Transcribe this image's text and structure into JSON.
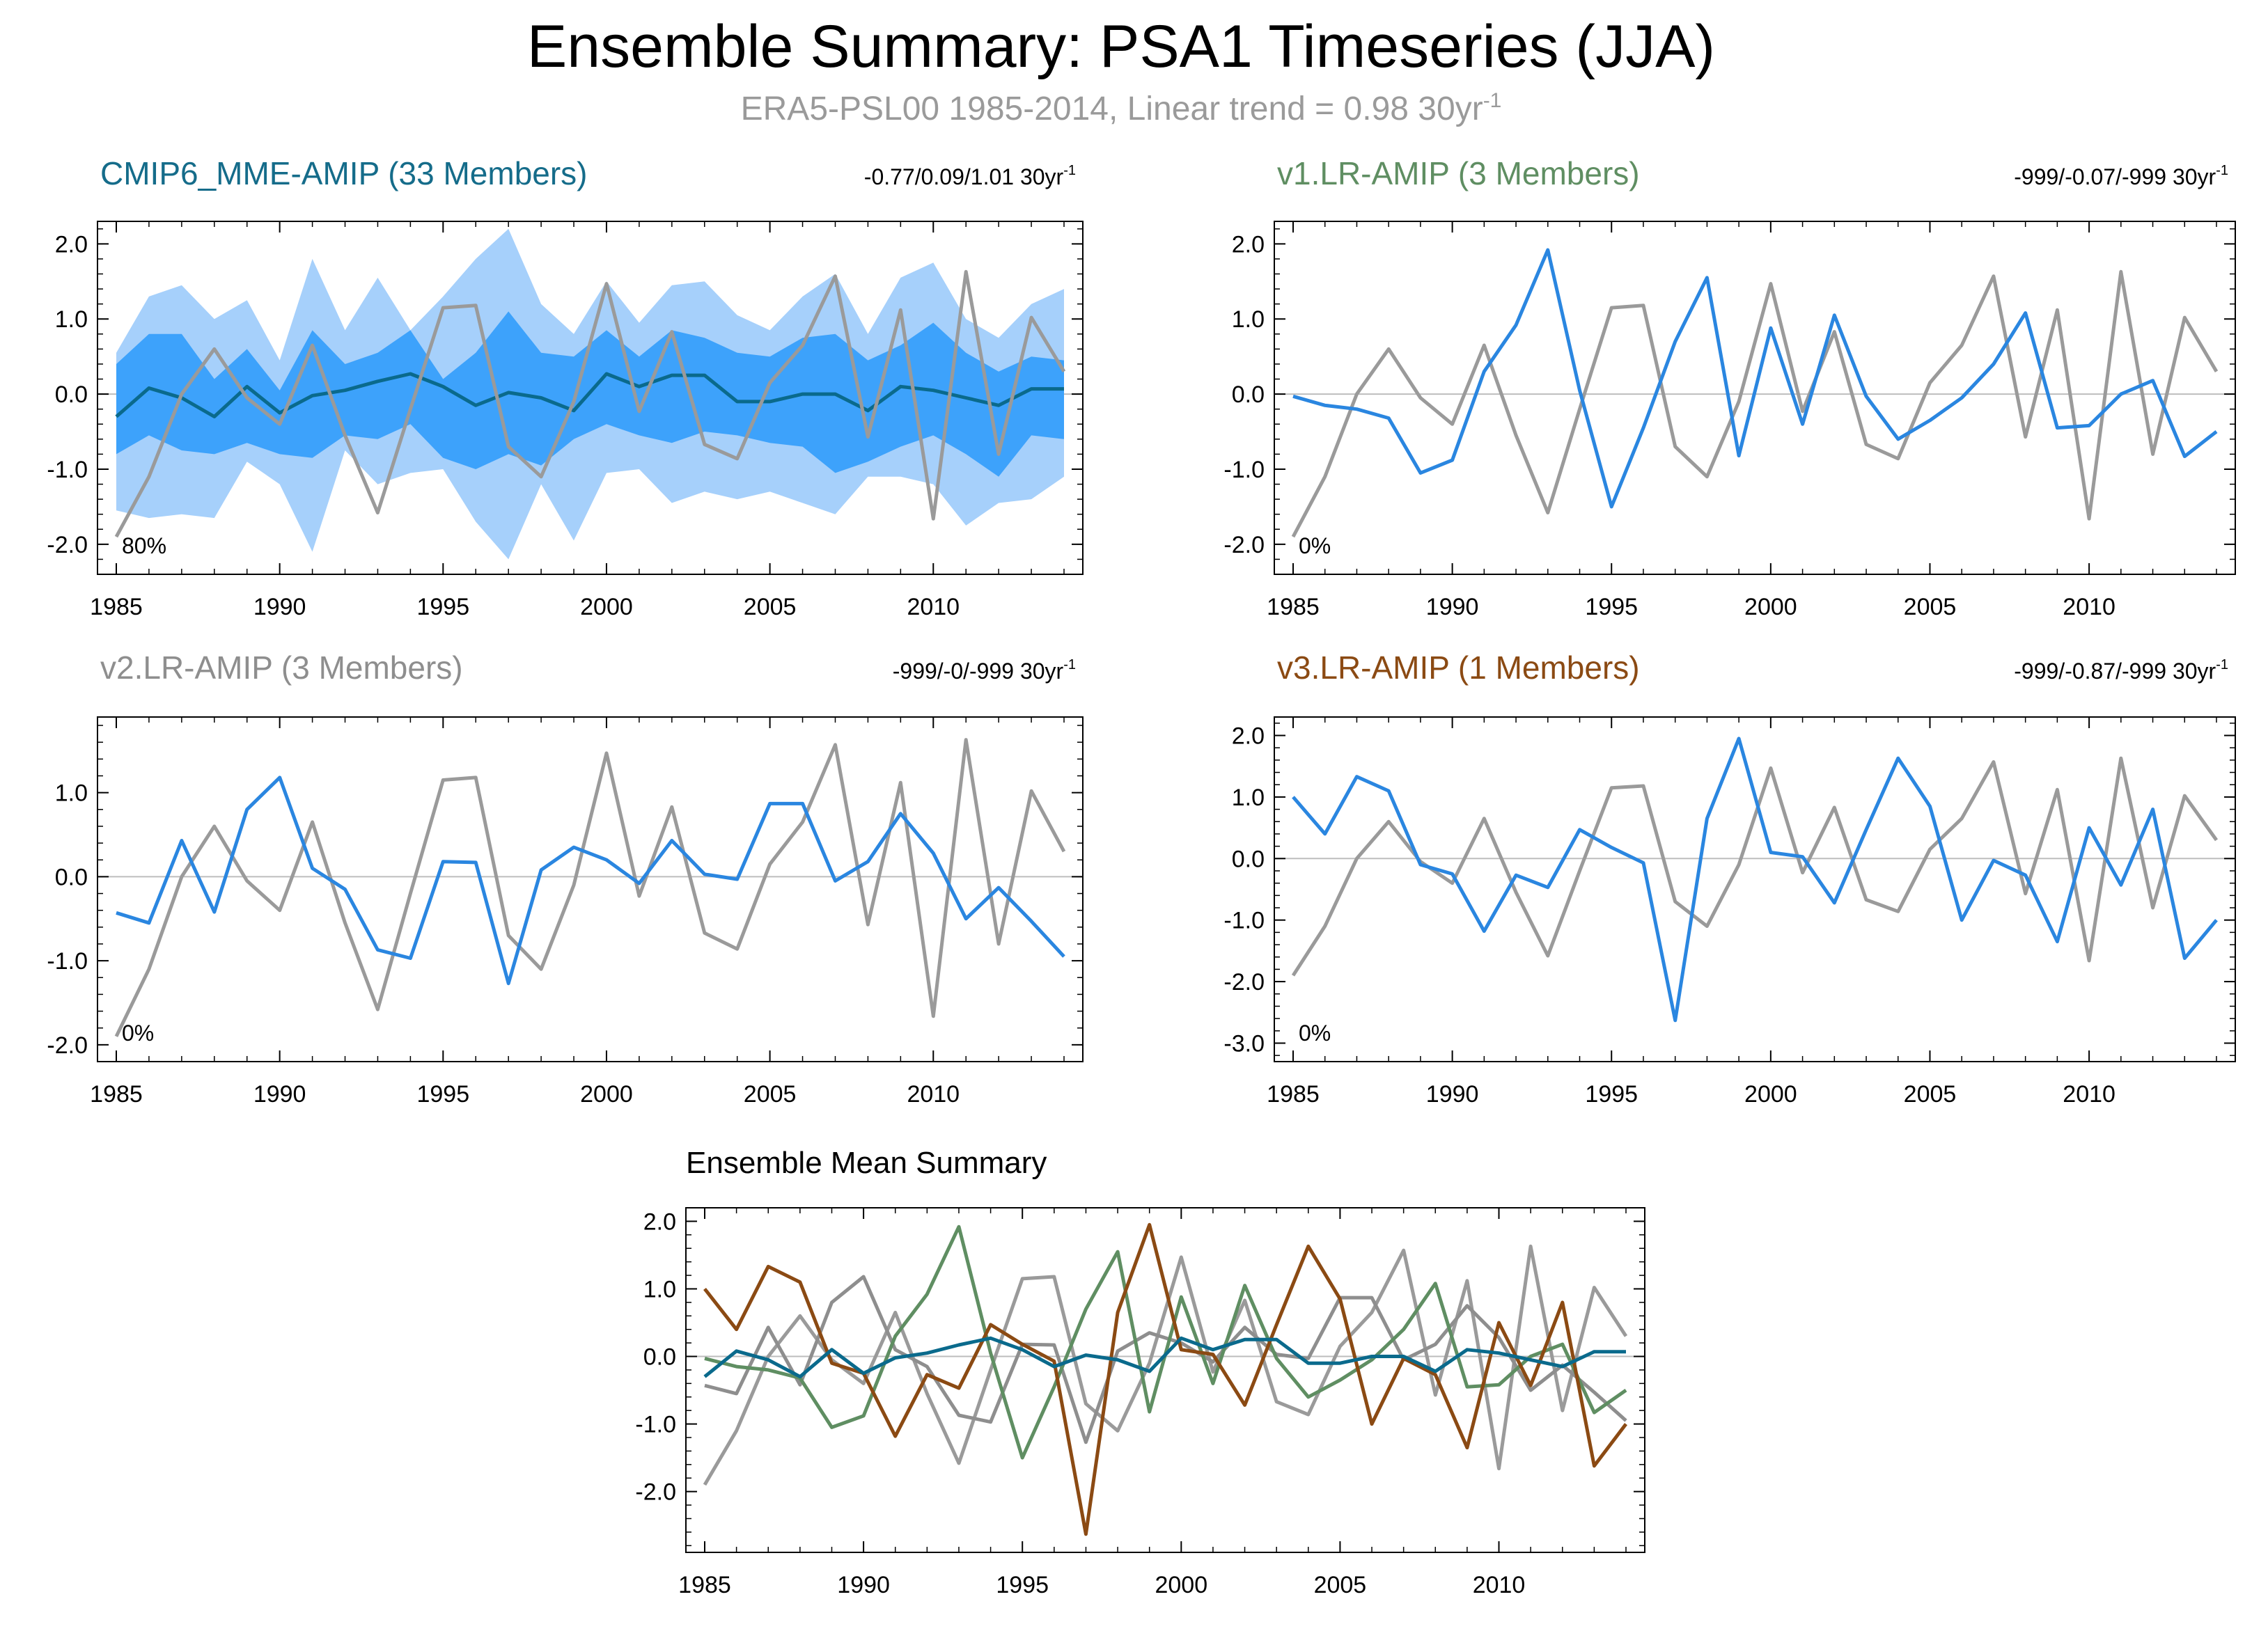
{
  "title": "Ensemble Summary: PSA1 Timeseries (JJA)",
  "subtitle": "ERA5-PSL00 1985-2014, Linear trend = 0.98 30yr",
  "subtitle_sup": "-1",
  "colors": {
    "obs": "#9a9a9a",
    "model": "#2a86e0",
    "band_outer": "#a6d0fb",
    "band_inner": "#3da2fb",
    "mme_mean": "#0a6a8c",
    "v1": "#5f8e62",
    "v2": "#8e8e8e",
    "v3": "#8b4a13",
    "zero": "#bdbdbd",
    "axis": "#000000"
  },
  "panels": [
    {
      "title": "CMIP6_MME-AMIP (33 Members)",
      "title_color": "#156c8a",
      "stats": "-0.77/0.09/1.01 30yr",
      "stats_sup": "-1",
      "pct": "80%",
      "yticks": [
        "2.0",
        "1.0",
        "0.0",
        "-1.0",
        "-2.0"
      ],
      "xticks": [
        "1985",
        "1990",
        "1995",
        "2000",
        "2005",
        "2010"
      ]
    },
    {
      "title": "v1.LR-AMIP (3 Members)",
      "title_color": "#5f8e62",
      "stats": "-999/-0.07/-999 30yr",
      "stats_sup": "-1",
      "pct": "0%",
      "yticks": [
        "2.0",
        "1.0",
        "0.0",
        "-1.0",
        "-2.0"
      ],
      "xticks": [
        "1985",
        "1990",
        "1995",
        "2000",
        "2005",
        "2010"
      ]
    },
    {
      "title": "v2.LR-AMIP (3 Members)",
      "title_color": "#8e8e8e",
      "stats": "-999/-0/-999 30yr",
      "stats_sup": "-1",
      "pct": "0%",
      "yticks": [
        "1.0",
        "0.0",
        "-1.0",
        "-2.0"
      ],
      "xticks": [
        "1985",
        "1990",
        "1995",
        "2000",
        "2005",
        "2010"
      ]
    },
    {
      "title": "v3.LR-AMIP (1 Members)",
      "title_color": "#8b4a13",
      "stats": "-999/-0.87/-999 30yr",
      "stats_sup": "-1",
      "pct": "0%",
      "yticks": [
        "2.0",
        "1.0",
        "0.0",
        "-1.0",
        "-2.0",
        "-3.0"
      ],
      "xticks": [
        "1985",
        "1990",
        "1995",
        "2000",
        "2005",
        "2010"
      ]
    },
    {
      "title": "Ensemble Mean Summary",
      "title_color": "#000000",
      "stats": "",
      "stats_sup": "",
      "pct": "",
      "yticks": [
        "2.0",
        "1.0",
        "0.0",
        "-1.0",
        "-2.0"
      ],
      "xticks": [
        "1985",
        "1990",
        "1995",
        "2000",
        "2005",
        "2010"
      ]
    }
  ],
  "chart_data": {
    "type": "line",
    "x": [
      1985,
      1986,
      1987,
      1988,
      1989,
      1990,
      1991,
      1992,
      1993,
      1994,
      1995,
      1996,
      1997,
      1998,
      1999,
      2000,
      2001,
      2002,
      2003,
      2004,
      2005,
      2006,
      2007,
      2008,
      2009,
      2010,
      2011,
      2012,
      2013,
      2014
    ],
    "observed": {
      "name": "ERA5-PSL00",
      "values": [
        -1.9,
        -1.1,
        0.0,
        0.6,
        -0.05,
        -0.4,
        0.65,
        -0.55,
        -1.58,
        -0.2,
        1.15,
        1.18,
        -0.7,
        -1.1,
        -0.1,
        1.47,
        -0.23,
        0.83,
        -0.67,
        -0.86,
        0.15,
        0.65,
        1.57,
        -0.57,
        1.12,
        -1.66,
        1.63,
        -0.8,
        1.02,
        0.3
      ]
    },
    "panels": [
      {
        "ylim": [
          -2.4,
          2.3
        ],
        "mean": [
          -0.3,
          0.08,
          -0.05,
          -0.3,
          0.1,
          -0.25,
          -0.02,
          0.05,
          0.17,
          0.27,
          0.1,
          -0.15,
          0.02,
          -0.05,
          -0.22,
          0.27,
          0.1,
          0.25,
          0.25,
          -0.1,
          -0.1,
          0.0,
          0.0,
          -0.22,
          0.1,
          0.05,
          -0.05,
          -0.15,
          0.07,
          0.07
        ],
        "band_inner_upper": [
          0.4,
          0.8,
          0.8,
          0.2,
          0.6,
          0.05,
          0.85,
          0.4,
          0.55,
          0.85,
          0.2,
          0.55,
          1.1,
          0.55,
          0.5,
          0.85,
          0.5,
          0.85,
          0.75,
          0.55,
          0.5,
          0.75,
          0.8,
          0.45,
          0.65,
          0.95,
          0.55,
          0.3,
          0.5,
          0.45
        ],
        "band_inner_lower": [
          -0.8,
          -0.55,
          -0.75,
          -0.8,
          -0.65,
          -0.8,
          -0.85,
          -0.55,
          -0.6,
          -0.4,
          -0.85,
          -1.0,
          -0.8,
          -0.95,
          -0.6,
          -0.4,
          -0.55,
          -0.65,
          -0.5,
          -0.55,
          -0.65,
          -0.7,
          -1.05,
          -0.9,
          -0.7,
          -0.55,
          -0.8,
          -1.1,
          -0.55,
          -0.6
        ],
        "band_outer_upper": [
          0.55,
          1.3,
          1.45,
          1.0,
          1.25,
          0.45,
          1.8,
          0.85,
          1.55,
          0.85,
          1.3,
          1.8,
          2.2,
          1.2,
          0.8,
          1.5,
          0.95,
          1.45,
          1.5,
          1.05,
          0.85,
          1.3,
          1.6,
          0.8,
          1.55,
          1.75,
          1.0,
          0.75,
          1.2,
          1.4
        ],
        "band_outer_lower": [
          -1.55,
          -1.65,
          -1.6,
          -1.65,
          -0.9,
          -1.2,
          -2.1,
          -0.75,
          -1.2,
          -1.05,
          -1.0,
          -1.7,
          -2.2,
          -1.2,
          -1.95,
          -1.05,
          -1.0,
          -1.45,
          -1.3,
          -1.4,
          -1.3,
          -1.45,
          -1.6,
          -1.1,
          -1.1,
          -1.2,
          -1.75,
          -1.45,
          -1.4,
          -1.1
        ]
      },
      {
        "ylim": [
          -2.4,
          2.3
        ],
        "series": [
          {
            "values": [
              -0.03,
              -0.15,
              -0.2,
              -0.32,
              -1.05,
              -0.88,
              0.3,
              0.92,
              1.92,
              0.05,
              -1.5,
              -0.45,
              0.7,
              1.55,
              -0.82,
              0.88,
              -0.4,
              1.05,
              -0.03,
              -0.6,
              -0.35,
              -0.05,
              0.4,
              1.08,
              -0.45,
              -0.42,
              0.0,
              0.18,
              -0.83,
              -0.5
            ]
          }
        ]
      },
      {
        "ylim": [
          -2.2,
          1.9
        ],
        "series": [
          {
            "values": [
              -0.43,
              -0.55,
              0.43,
              -0.42,
              0.8,
              1.18,
              0.1,
              -0.15,
              -0.87,
              -0.97,
              0.18,
              0.17,
              -1.27,
              0.08,
              0.35,
              0.2,
              -0.08,
              0.43,
              0.03,
              -0.03,
              0.87,
              0.87,
              -0.05,
              0.18,
              0.75,
              0.28,
              -0.5,
              -0.13,
              -0.53,
              -0.95
            ]
          }
        ]
      },
      {
        "ylim": [
          -3.3,
          2.3
        ],
        "series": [
          {
            "values": [
              1.0,
              0.4,
              1.33,
              1.1,
              -0.1,
              -0.25,
              -1.18,
              -0.27,
              -0.47,
              0.47,
              0.18,
              -0.07,
              -2.63,
              0.65,
              1.95,
              0.1,
              0.03,
              -0.72,
              0.47,
              1.63,
              0.85,
              -1.0,
              -0.03,
              -0.27,
              -1.35,
              0.5,
              -0.43,
              0.8,
              -1.62,
              -1.0
            ]
          }
        ]
      },
      {
        "ylim": [
          -2.9,
          2.2
        ],
        "series": [
          {
            "name": "CMIP6_MME-AMIP",
            "color_key": "mme_mean",
            "values": [
              -0.3,
              0.08,
              -0.05,
              -0.3,
              0.1,
              -0.25,
              -0.02,
              0.05,
              0.17,
              0.27,
              0.1,
              -0.15,
              0.02,
              -0.05,
              -0.22,
              0.27,
              0.1,
              0.25,
              0.25,
              -0.1,
              -0.1,
              0.0,
              0.0,
              -0.22,
              0.1,
              0.05,
              -0.05,
              -0.15,
              0.07,
              0.07
            ]
          },
          {
            "name": "v1.LR-AMIP",
            "color_key": "v1",
            "values": [
              -0.03,
              -0.15,
              -0.2,
              -0.32,
              -1.05,
              -0.88,
              0.3,
              0.92,
              1.92,
              0.05,
              -1.5,
              -0.45,
              0.7,
              1.55,
              -0.82,
              0.88,
              -0.4,
              1.05,
              -0.03,
              -0.6,
              -0.35,
              -0.05,
              0.4,
              1.08,
              -0.45,
              -0.42,
              0.0,
              0.18,
              -0.83,
              -0.5
            ]
          },
          {
            "name": "v2.LR-AMIP",
            "color_key": "v2",
            "values": [
              -0.43,
              -0.55,
              0.43,
              -0.42,
              0.8,
              1.18,
              0.1,
              -0.15,
              -0.87,
              -0.97,
              0.18,
              0.17,
              -1.27,
              0.08,
              0.35,
              0.2,
              -0.08,
              0.43,
              0.03,
              -0.03,
              0.87,
              0.87,
              -0.05,
              0.18,
              0.75,
              0.28,
              -0.5,
              -0.13,
              -0.53,
              -0.95
            ]
          },
          {
            "name": "v3.LR-AMIP",
            "color_key": "v3",
            "values": [
              1.0,
              0.4,
              1.33,
              1.1,
              -0.1,
              -0.25,
              -1.18,
              -0.27,
              -0.47,
              0.47,
              0.18,
              -0.07,
              -2.63,
              0.65,
              1.95,
              0.1,
              0.03,
              -0.72,
              0.47,
              1.63,
              0.85,
              -1.0,
              -0.03,
              -0.27,
              -1.35,
              0.5,
              -0.43,
              0.8,
              -1.62,
              -1.0
            ]
          }
        ]
      }
    ]
  }
}
